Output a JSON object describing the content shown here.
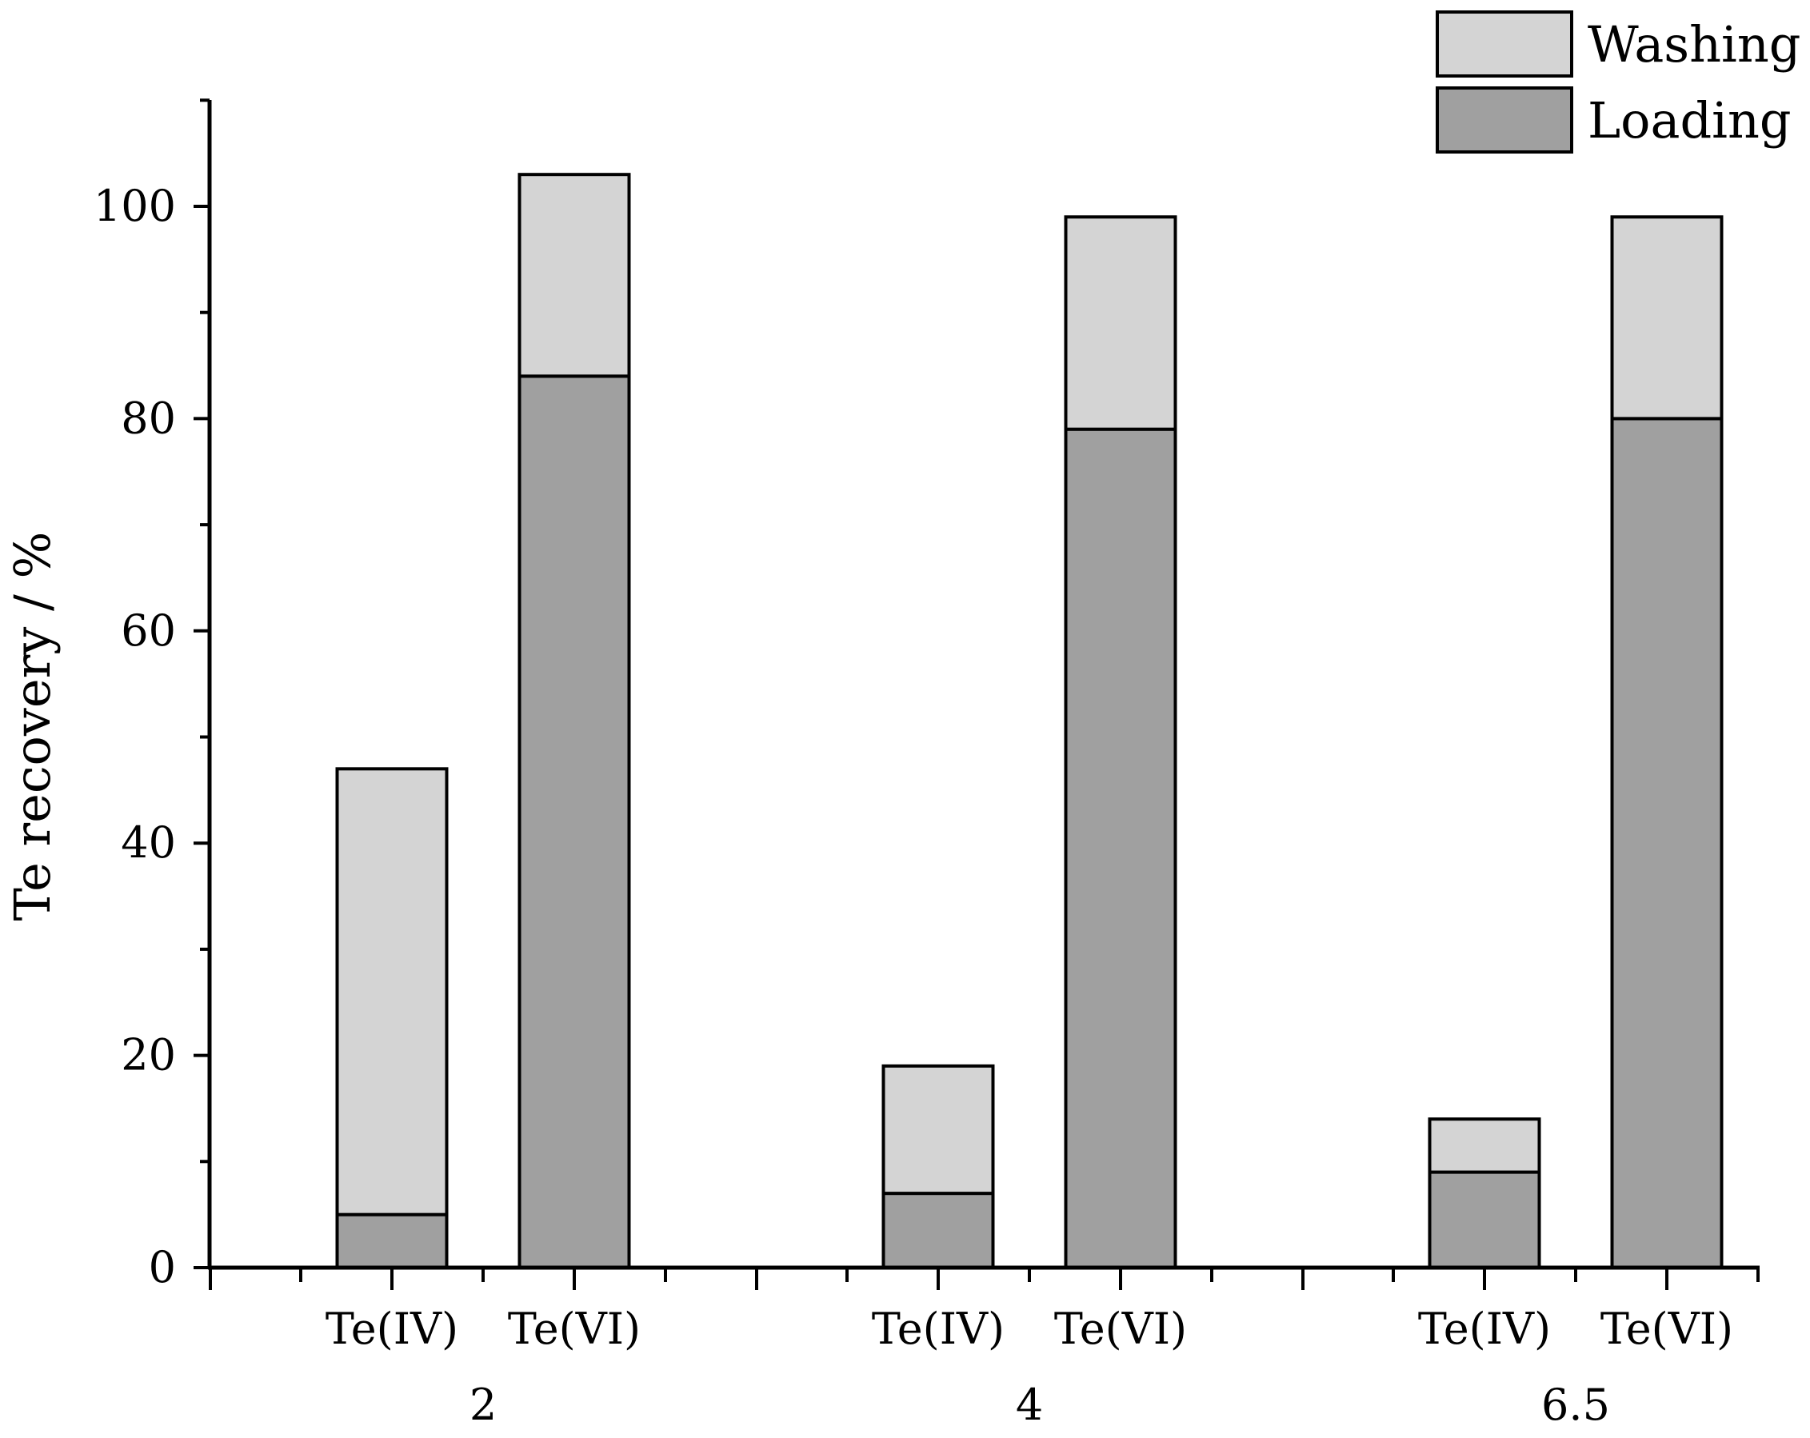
{
  "chart_data": {
    "type": "bar",
    "stacked": true,
    "title": "",
    "xlabel": "",
    "ylabel": "Te recovery / %",
    "ylim": [
      0,
      110
    ],
    "yticks": [
      0,
      20,
      40,
      60,
      80,
      100
    ],
    "groups": [
      "2",
      "4",
      "6.5"
    ],
    "categories": [
      "Te(IV)",
      "Te(VI)"
    ],
    "series": [
      {
        "name": "Loading",
        "color": "#a0a0a0",
        "values": [
          [
            5,
            84
          ],
          [
            7,
            79
          ],
          [
            9,
            80
          ]
        ]
      },
      {
        "name": "Washing",
        "color": "#d4d4d4",
        "values": [
          [
            42,
            19
          ],
          [
            12,
            20
          ],
          [
            5,
            19
          ]
        ]
      }
    ],
    "legend_order": [
      "Washing",
      "Loading"
    ],
    "legend_position": "top-right",
    "grid": false
  }
}
